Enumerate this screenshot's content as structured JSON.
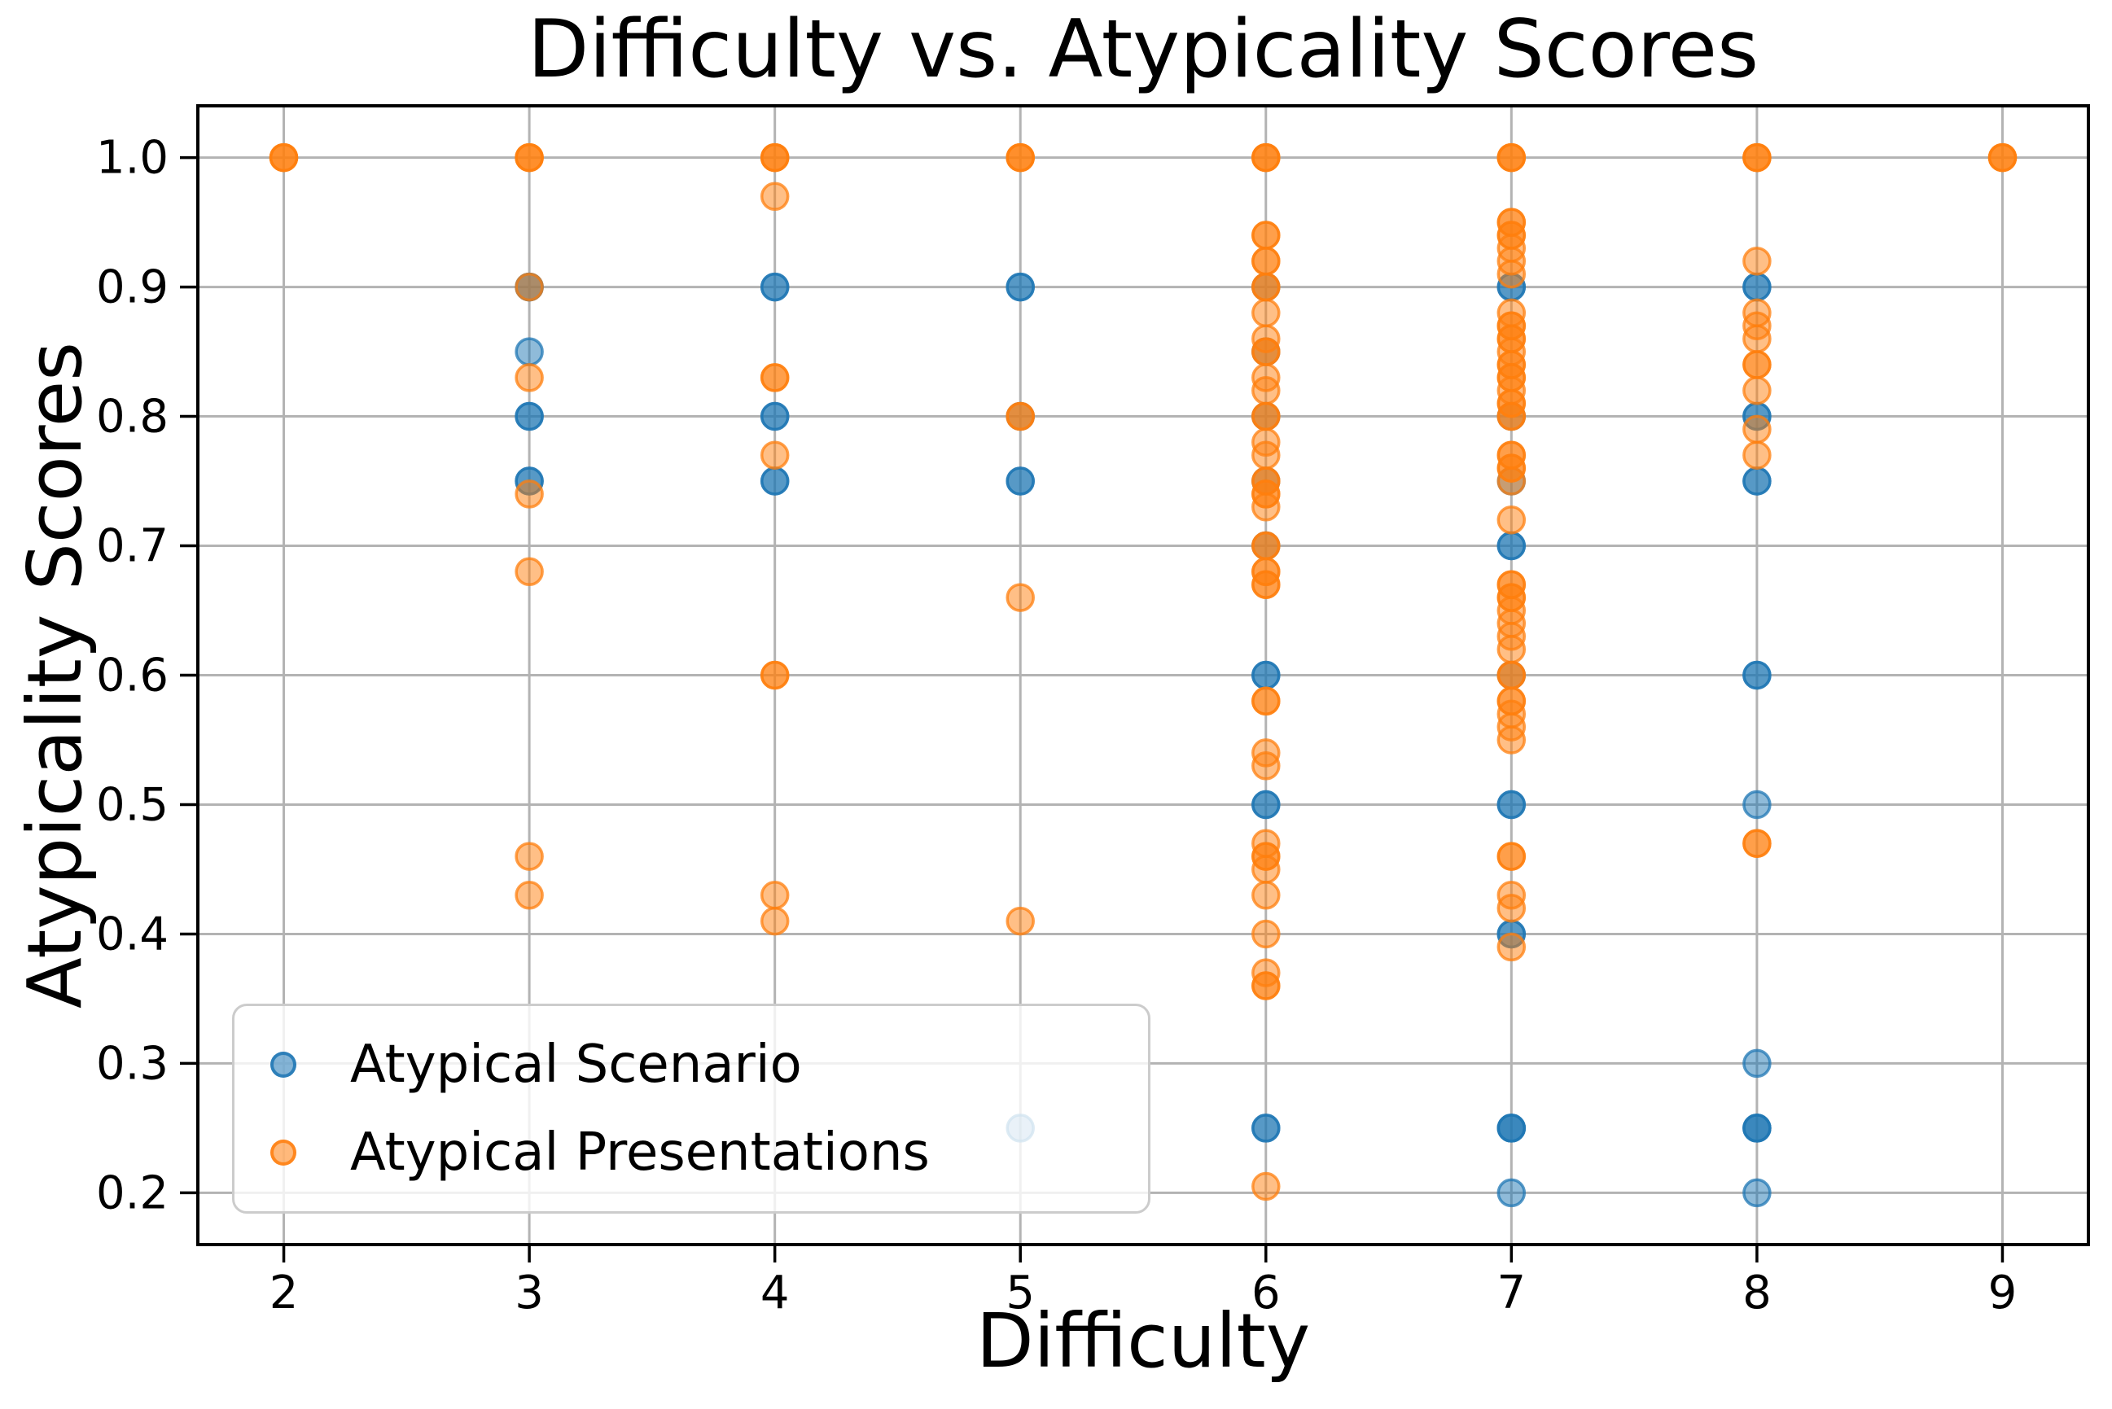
{
  "legend": {
    "items": [
      {
        "label": "Atypical Scenario",
        "color": "#1f77b4",
        "marker": "circle-icon"
      },
      {
        "label": "Atypical Presentations",
        "color": "#ff7f0e",
        "marker": "circle-icon"
      }
    ]
  },
  "chart_data": {
    "type": "scatter",
    "title": "Difficulty vs. Atypicality Scores",
    "xlabel": "Difficulty",
    "ylabel": "Atypicality Scores",
    "xlim": [
      1.65,
      9.35
    ],
    "ylim": [
      0.16,
      1.04
    ],
    "xticks": [
      2,
      3,
      4,
      5,
      6,
      7,
      8,
      9
    ],
    "xtick_labels": [
      "2",
      "3",
      "4",
      "5",
      "6",
      "7",
      "8",
      "9"
    ],
    "yticks": [
      0.2,
      0.3,
      0.4,
      0.5,
      0.6,
      0.7,
      0.8,
      0.9,
      1.0
    ],
    "ytick_labels": [
      "0.2",
      "0.3",
      "0.4",
      "0.5",
      "0.6",
      "0.7",
      "0.8",
      "0.9",
      "1.0"
    ],
    "grid": true,
    "grid_color": "#b3b3b3",
    "spine_color": "#000000",
    "marker_alpha": 0.5,
    "legend_position": "lower left",
    "series": [
      {
        "name": "Atypical Scenario",
        "color": "#1f77b4",
        "points_note": "each point is [difficulty, atypicality, overlap_count]",
        "points": [
          [
            3,
            0.9,
            2
          ],
          [
            3,
            0.85,
            1
          ],
          [
            3,
            0.8,
            2
          ],
          [
            3,
            0.75,
            2
          ],
          [
            4,
            0.9,
            2
          ],
          [
            4,
            0.8,
            2
          ],
          [
            4,
            0.75,
            2
          ],
          [
            5,
            0.9,
            2
          ],
          [
            5,
            0.8,
            1
          ],
          [
            5,
            0.75,
            2
          ],
          [
            5,
            0.25,
            1
          ],
          [
            6,
            0.9,
            1
          ],
          [
            6,
            0.85,
            1
          ],
          [
            6,
            0.8,
            1
          ],
          [
            6,
            0.75,
            1
          ],
          [
            6,
            0.7,
            1
          ],
          [
            6,
            0.6,
            2
          ],
          [
            6,
            0.5,
            2
          ],
          [
            6,
            0.25,
            2
          ],
          [
            7,
            0.9,
            2
          ],
          [
            7,
            0.8,
            1
          ],
          [
            7,
            0.75,
            1
          ],
          [
            7,
            0.7,
            2
          ],
          [
            7,
            0.6,
            1
          ],
          [
            7,
            0.5,
            2
          ],
          [
            7,
            0.4,
            2
          ],
          [
            7,
            0.25,
            3
          ],
          [
            7,
            0.2,
            1
          ],
          [
            8,
            0.9,
            2
          ],
          [
            8,
            0.8,
            2
          ],
          [
            8,
            0.75,
            2
          ],
          [
            8,
            0.6,
            2
          ],
          [
            8,
            0.5,
            1
          ],
          [
            8,
            0.3,
            1
          ],
          [
            8,
            0.25,
            3
          ],
          [
            8,
            0.2,
            1
          ]
        ]
      },
      {
        "name": "Atypical Presentations",
        "color": "#ff7f0e",
        "points_note": "each point is [difficulty, atypicality, overlap_count]",
        "points": [
          [
            2,
            1.0,
            3
          ],
          [
            3,
            1.0,
            3
          ],
          [
            3,
            0.9,
            1
          ],
          [
            3,
            0.83,
            1
          ],
          [
            3,
            0.74,
            1
          ],
          [
            3,
            0.68,
            1
          ],
          [
            3,
            0.46,
            1
          ],
          [
            3,
            0.43,
            1
          ],
          [
            4,
            1.0,
            3
          ],
          [
            4,
            0.97,
            1
          ],
          [
            4,
            0.83,
            2
          ],
          [
            4,
            0.77,
            1
          ],
          [
            4,
            0.6,
            2
          ],
          [
            4,
            0.43,
            1
          ],
          [
            4,
            0.41,
            1
          ],
          [
            5,
            1.0,
            3
          ],
          [
            5,
            0.8,
            2
          ],
          [
            5,
            0.66,
            1
          ],
          [
            5,
            0.41,
            1
          ],
          [
            6,
            1.0,
            3
          ],
          [
            6,
            0.94,
            2
          ],
          [
            6,
            0.92,
            2
          ],
          [
            6,
            0.9,
            2
          ],
          [
            6,
            0.88,
            1
          ],
          [
            6,
            0.86,
            1
          ],
          [
            6,
            0.85,
            2
          ],
          [
            6,
            0.83,
            1
          ],
          [
            6,
            0.82,
            1
          ],
          [
            6,
            0.8,
            2
          ],
          [
            6,
            0.78,
            1
          ],
          [
            6,
            0.77,
            1
          ],
          [
            6,
            0.75,
            2
          ],
          [
            6,
            0.74,
            2
          ],
          [
            6,
            0.73,
            1
          ],
          [
            6,
            0.7,
            2
          ],
          [
            6,
            0.68,
            2
          ],
          [
            6,
            0.67,
            2
          ],
          [
            6,
            0.58,
            2
          ],
          [
            6,
            0.54,
            1
          ],
          [
            6,
            0.53,
            1
          ],
          [
            6,
            0.47,
            1
          ],
          [
            6,
            0.46,
            2
          ],
          [
            6,
            0.45,
            1
          ],
          [
            6,
            0.43,
            1
          ],
          [
            6,
            0.4,
            1
          ],
          [
            6,
            0.37,
            1
          ],
          [
            6,
            0.36,
            2
          ],
          [
            6,
            0.205,
            1
          ],
          [
            7,
            1.0,
            3
          ],
          [
            7,
            0.95,
            2
          ],
          [
            7,
            0.94,
            2
          ],
          [
            7,
            0.93,
            1
          ],
          [
            7,
            0.92,
            1
          ],
          [
            7,
            0.91,
            1
          ],
          [
            7,
            0.88,
            1
          ],
          [
            7,
            0.87,
            2
          ],
          [
            7,
            0.86,
            2
          ],
          [
            7,
            0.85,
            1
          ],
          [
            7,
            0.84,
            2
          ],
          [
            7,
            0.83,
            2
          ],
          [
            7,
            0.82,
            1
          ],
          [
            7,
            0.81,
            2
          ],
          [
            7,
            0.8,
            2
          ],
          [
            7,
            0.77,
            2
          ],
          [
            7,
            0.76,
            2
          ],
          [
            7,
            0.75,
            1
          ],
          [
            7,
            0.72,
            1
          ],
          [
            7,
            0.67,
            2
          ],
          [
            7,
            0.66,
            2
          ],
          [
            7,
            0.65,
            1
          ],
          [
            7,
            0.64,
            1
          ],
          [
            7,
            0.63,
            1
          ],
          [
            7,
            0.62,
            1
          ],
          [
            7,
            0.6,
            2
          ],
          [
            7,
            0.58,
            2
          ],
          [
            7,
            0.57,
            1
          ],
          [
            7,
            0.56,
            1
          ],
          [
            7,
            0.55,
            1
          ],
          [
            7,
            0.46,
            2
          ],
          [
            7,
            0.43,
            1
          ],
          [
            7,
            0.42,
            1
          ],
          [
            7,
            0.39,
            1
          ],
          [
            8,
            1.0,
            3
          ],
          [
            8,
            0.92,
            1
          ],
          [
            8,
            0.88,
            1
          ],
          [
            8,
            0.87,
            1
          ],
          [
            8,
            0.86,
            1
          ],
          [
            8,
            0.84,
            2
          ],
          [
            8,
            0.82,
            1
          ],
          [
            8,
            0.79,
            1
          ],
          [
            8,
            0.77,
            1
          ],
          [
            8,
            0.47,
            2
          ],
          [
            9,
            1.0,
            3
          ]
        ]
      }
    ]
  }
}
